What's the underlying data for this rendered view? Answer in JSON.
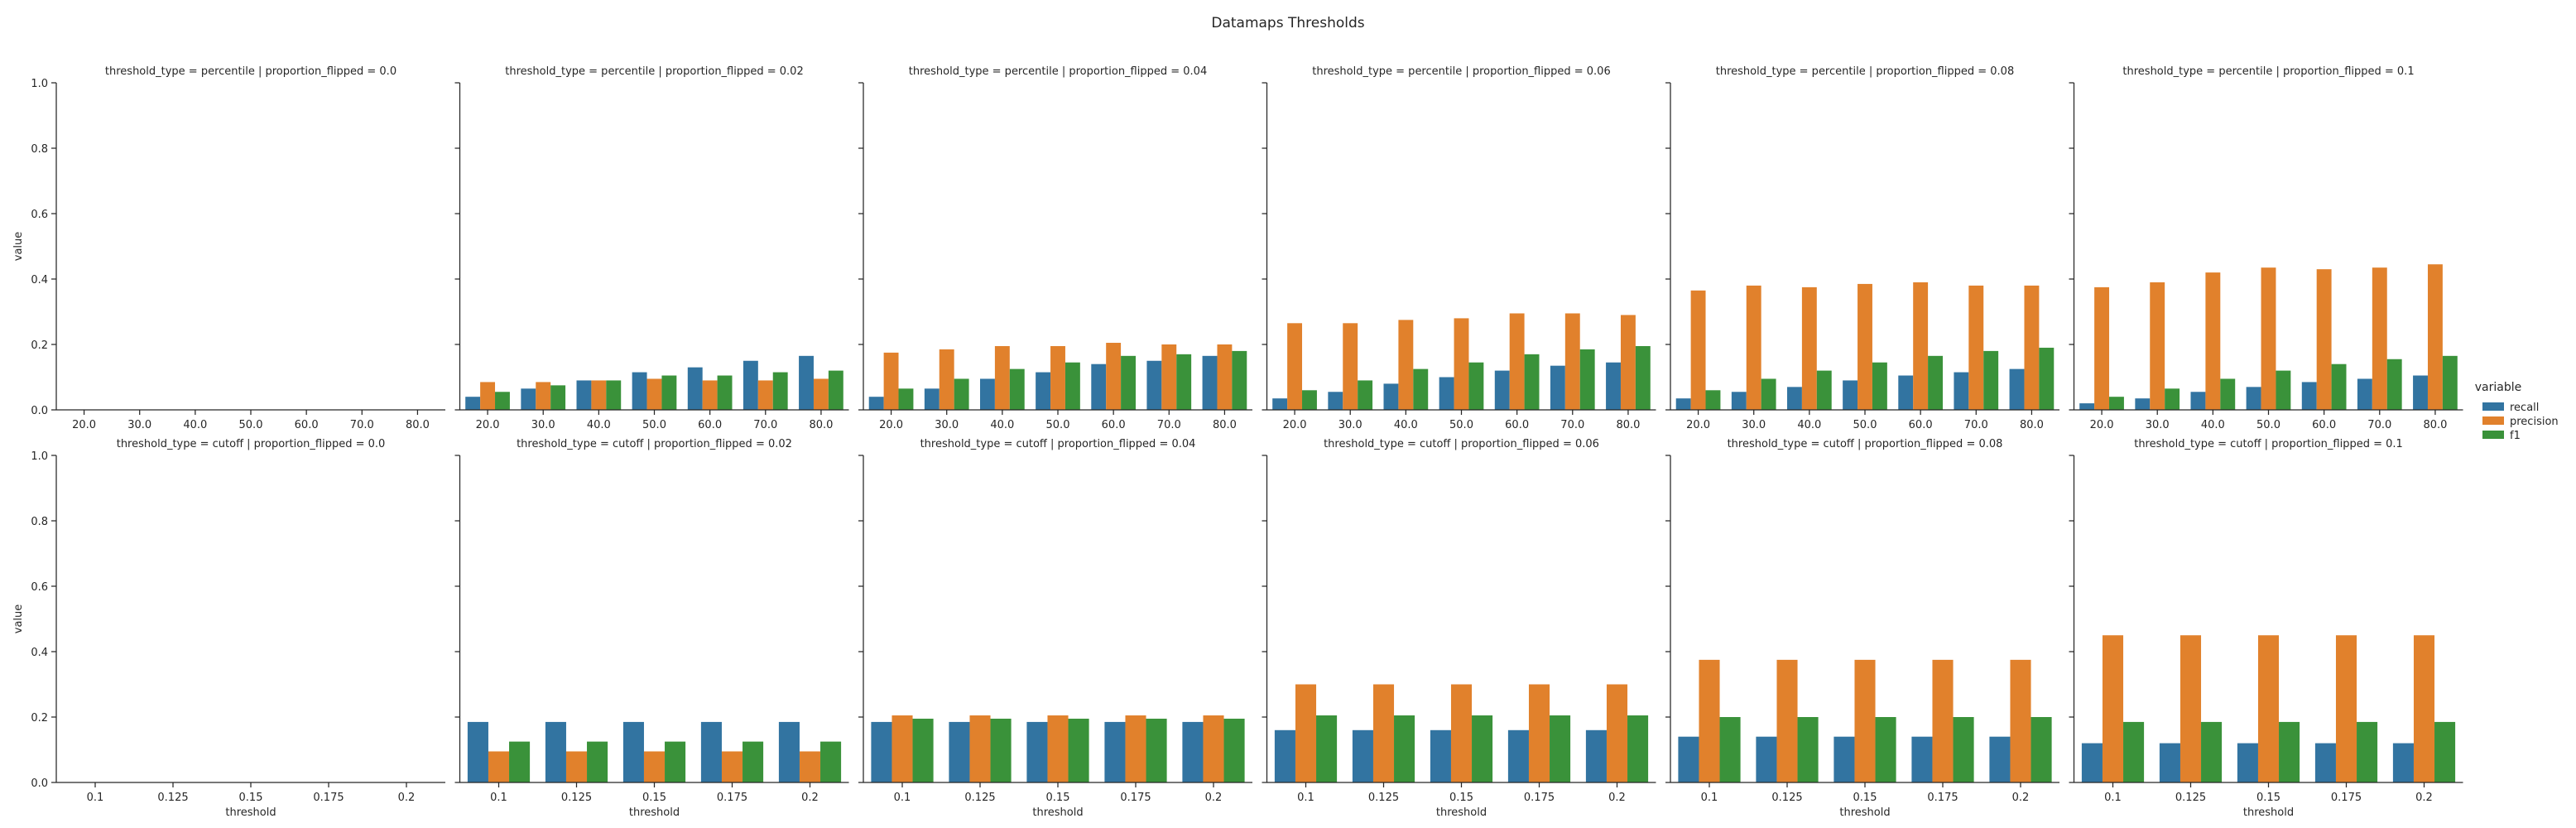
{
  "title": "Datamaps Thresholds",
  "colors": {
    "recall": "#3274a1",
    "precision": "#e1812c",
    "f1": "#3a923a",
    "axis": "#262626"
  },
  "legend": {
    "title": "variable",
    "placement": "right",
    "items": [
      "recall",
      "precision",
      "f1"
    ]
  },
  "y_ticks": [
    "0.0",
    "0.2",
    "0.4",
    "0.6",
    "0.8",
    "1.0"
  ],
  "chart_data": {
    "type": "bar",
    "layout": "facet-grid 2x6",
    "ylabel": "value",
    "xlabel": "threshold",
    "ylim": [
      0,
      1
    ],
    "grid": false,
    "series_names": [
      "recall",
      "precision",
      "f1"
    ],
    "rows": [
      {
        "threshold_type": "percentile",
        "categories": [
          "20.0",
          "30.0",
          "40.0",
          "50.0",
          "60.0",
          "70.0",
          "80.0"
        ],
        "panels": [
          {
            "title": "threshold_type = percentile | proportion_flipped = 0.0",
            "values": {
              "recall": [
                0,
                0,
                0,
                0,
                0,
                0,
                0
              ],
              "precision": [
                0,
                0,
                0,
                0,
                0,
                0,
                0
              ],
              "f1": [
                0,
                0,
                0,
                0,
                0,
                0,
                0
              ]
            }
          },
          {
            "title": "threshold_type = percentile | proportion_flipped = 0.02",
            "values": {
              "recall": [
                0.04,
                0.065,
                0.09,
                0.115,
                0.13,
                0.15,
                0.165
              ],
              "precision": [
                0.085,
                0.085,
                0.09,
                0.095,
                0.09,
                0.09,
                0.095
              ],
              "f1": [
                0.055,
                0.075,
                0.09,
                0.105,
                0.105,
                0.115,
                0.12
              ]
            }
          },
          {
            "title": "threshold_type = percentile | proportion_flipped = 0.04",
            "values": {
              "recall": [
                0.04,
                0.065,
                0.095,
                0.115,
                0.14,
                0.15,
                0.165
              ],
              "precision": [
                0.175,
                0.185,
                0.195,
                0.195,
                0.205,
                0.2,
                0.2
              ],
              "f1": [
                0.065,
                0.095,
                0.125,
                0.145,
                0.165,
                0.17,
                0.18
              ]
            }
          },
          {
            "title": "threshold_type = percentile | proportion_flipped = 0.06",
            "values": {
              "recall": [
                0.035,
                0.055,
                0.08,
                0.1,
                0.12,
                0.135,
                0.145
              ],
              "precision": [
                0.265,
                0.265,
                0.275,
                0.28,
                0.295,
                0.295,
                0.29
              ],
              "f1": [
                0.06,
                0.09,
                0.125,
                0.145,
                0.17,
                0.185,
                0.195
              ]
            }
          },
          {
            "title": "threshold_type = percentile | proportion_flipped = 0.08",
            "values": {
              "recall": [
                0.035,
                0.055,
                0.07,
                0.09,
                0.105,
                0.115,
                0.125
              ],
              "precision": [
                0.365,
                0.38,
                0.375,
                0.385,
                0.39,
                0.38,
                0.38
              ],
              "f1": [
                0.06,
                0.095,
                0.12,
                0.145,
                0.165,
                0.18,
                0.19
              ]
            }
          },
          {
            "title": "threshold_type = percentile | proportion_flipped = 0.1",
            "values": {
              "recall": [
                0.02,
                0.035,
                0.055,
                0.07,
                0.085,
                0.095,
                0.105
              ],
              "precision": [
                0.375,
                0.39,
                0.42,
                0.435,
                0.43,
                0.435,
                0.445
              ],
              "f1": [
                0.04,
                0.065,
                0.095,
                0.12,
                0.14,
                0.155,
                0.165
              ]
            }
          }
        ]
      },
      {
        "threshold_type": "cutoff",
        "categories": [
          "0.1",
          "0.125",
          "0.15",
          "0.175",
          "0.2"
        ],
        "panels": [
          {
            "title": "threshold_type = cutoff | proportion_flipped = 0.0",
            "values": {
              "recall": [
                0,
                0,
                0,
                0,
                0
              ],
              "precision": [
                0,
                0,
                0,
                0,
                0
              ],
              "f1": [
                0,
                0,
                0,
                0,
                0
              ]
            }
          },
          {
            "title": "threshold_type = cutoff | proportion_flipped = 0.02",
            "values": {
              "recall": [
                0.185,
                0.185,
                0.185,
                0.185,
                0.185
              ],
              "precision": [
                0.095,
                0.095,
                0.095,
                0.095,
                0.095
              ],
              "f1": [
                0.125,
                0.125,
                0.125,
                0.125,
                0.125
              ]
            }
          },
          {
            "title": "threshold_type = cutoff | proportion_flipped = 0.04",
            "values": {
              "recall": [
                0.185,
                0.185,
                0.185,
                0.185,
                0.185
              ],
              "precision": [
                0.205,
                0.205,
                0.205,
                0.205,
                0.205
              ],
              "f1": [
                0.195,
                0.195,
                0.195,
                0.195,
                0.195
              ]
            }
          },
          {
            "title": "threshold_type = cutoff | proportion_flipped = 0.06",
            "values": {
              "recall": [
                0.16,
                0.16,
                0.16,
                0.16,
                0.16
              ],
              "precision": [
                0.3,
                0.3,
                0.3,
                0.3,
                0.3
              ],
              "f1": [
                0.205,
                0.205,
                0.205,
                0.205,
                0.205
              ]
            }
          },
          {
            "title": "threshold_type = cutoff | proportion_flipped = 0.08",
            "values": {
              "recall": [
                0.14,
                0.14,
                0.14,
                0.14,
                0.14
              ],
              "precision": [
                0.375,
                0.375,
                0.375,
                0.375,
                0.375
              ],
              "f1": [
                0.2,
                0.2,
                0.2,
                0.2,
                0.2
              ]
            }
          },
          {
            "title": "threshold_type = cutoff | proportion_flipped = 0.1",
            "values": {
              "recall": [
                0.12,
                0.12,
                0.12,
                0.12,
                0.12
              ],
              "precision": [
                0.45,
                0.45,
                0.45,
                0.45,
                0.45
              ],
              "f1": [
                0.185,
                0.185,
                0.185,
                0.185,
                0.185
              ]
            }
          }
        ]
      }
    ]
  }
}
